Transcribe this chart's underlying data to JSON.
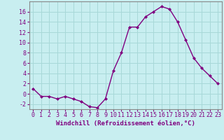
{
  "x": [
    0,
    1,
    2,
    3,
    4,
    5,
    6,
    7,
    8,
    9,
    10,
    11,
    12,
    13,
    14,
    15,
    16,
    17,
    18,
    19,
    20,
    21,
    22,
    23
  ],
  "y": [
    1,
    -0.5,
    -0.5,
    -1,
    -0.5,
    -1,
    -1.5,
    -2.5,
    -2.7,
    -1,
    4.5,
    8,
    13,
    13,
    15,
    16,
    17,
    16.5,
    14,
    10.5,
    7,
    5,
    3.5,
    2
  ],
  "line_color": "#800080",
  "marker_color": "#800080",
  "bg_color": "#c8eef0",
  "plot_bg_color": "#c8eef0",
  "grid_color": "#a8d8d8",
  "xlabel": "Windchill (Refroidissement éolien,°C)",
  "ylabel": "",
  "ylim": [
    -3,
    18
  ],
  "xlim": [
    -0.5,
    23.5
  ],
  "yticks": [
    -2,
    0,
    2,
    4,
    6,
    8,
    10,
    12,
    14,
    16
  ],
  "xticks": [
    0,
    1,
    2,
    3,
    4,
    5,
    6,
    7,
    8,
    9,
    10,
    11,
    12,
    13,
    14,
    15,
    16,
    17,
    18,
    19,
    20,
    21,
    22,
    23
  ],
  "label_fontsize": 6.5,
  "tick_fontsize": 6.0
}
